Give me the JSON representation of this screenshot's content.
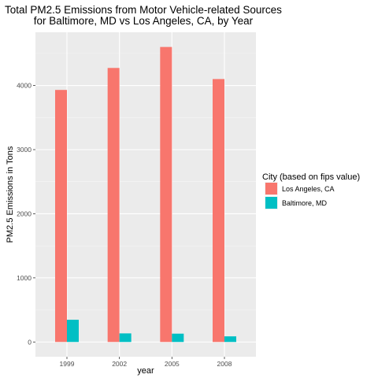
{
  "chart_data": {
    "type": "bar",
    "title_lines": [
      "Total PM2.5 Emissions from Motor Vehicle-related Sources",
      "for Baltimore, MD vs Los Angeles, CA, by Year"
    ],
    "xlabel": "year",
    "ylabel": "PM2.5 Emissions in Tons",
    "categories": [
      "1999",
      "2002",
      "2005",
      "2008"
    ],
    "series": [
      {
        "name": "Los Angeles, CA",
        "color": "#F8766D",
        "values": [
          3931,
          4274,
          4601,
          4101
        ]
      },
      {
        "name": "Baltimore, MD",
        "color": "#00BFC4",
        "values": [
          347,
          134,
          130,
          88
        ]
      }
    ],
    "yticks": [
      0,
      1000,
      2000,
      3000,
      4000
    ],
    "ylim": [
      -230,
      4830
    ],
    "legend": {
      "title": "City (based on fips value)",
      "position": "right"
    },
    "grid": true
  }
}
